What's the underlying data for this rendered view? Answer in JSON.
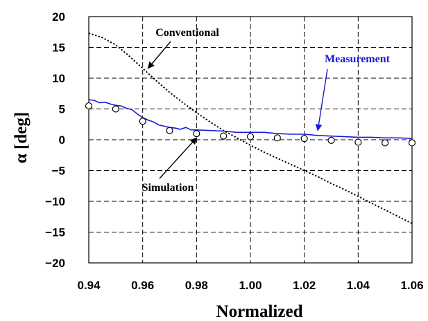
{
  "chart_data": {
    "type": "line",
    "xlabel": "Normalized",
    "ylabel": "α [deg]",
    "xlim": [
      0.94,
      1.06
    ],
    "ylim": [
      -20,
      20
    ],
    "x_ticks": [
      "0.94",
      "0.96",
      "0.98",
      "1.00",
      "1.02",
      "1.04",
      "1.06"
    ],
    "y_ticks": [
      "20",
      "15",
      "10",
      "5",
      "0",
      "−5",
      "−10",
      "−15",
      "−20"
    ],
    "x_tick_values": [
      0.94,
      0.96,
      0.98,
      1.0,
      1.02,
      1.04,
      1.06
    ],
    "y_tick_values": [
      20,
      15,
      10,
      5,
      0,
      -5,
      -10,
      -15,
      -20
    ],
    "grid": true,
    "series": [
      {
        "name": "Conventional",
        "style": "dotted",
        "color": "#000000",
        "x": [
          0.94,
          0.945,
          0.95,
          0.955,
          0.96,
          0.965,
          0.97,
          0.975,
          0.98,
          0.985,
          0.99,
          0.995,
          1.0,
          1.005,
          1.01,
          1.015,
          1.02,
          1.025,
          1.03,
          1.035,
          1.04,
          1.045,
          1.05,
          1.055,
          1.06
        ],
        "y": [
          17.3,
          16.6,
          15.4,
          13.6,
          11.6,
          9.6,
          7.7,
          6.0,
          4.4,
          2.9,
          1.5,
          0.3,
          -0.9,
          -2.0,
          -3.0,
          -4.0,
          -5.0,
          -6.0,
          -7.1,
          -8.1,
          -9.2,
          -10.3,
          -11.4,
          -12.5,
          -13.6
        ]
      },
      {
        "name": "Measurement",
        "style": "solid",
        "color": "#1a1ad6",
        "x": [
          0.94,
          0.942,
          0.944,
          0.946,
          0.948,
          0.95,
          0.952,
          0.954,
          0.956,
          0.958,
          0.96,
          0.962,
          0.964,
          0.966,
          0.968,
          0.97,
          0.972,
          0.974,
          0.976,
          0.978,
          0.98,
          0.985,
          0.99,
          0.995,
          1.0,
          1.005,
          1.01,
          1.015,
          1.02,
          1.025,
          1.03,
          1.035,
          1.04,
          1.045,
          1.05,
          1.055,
          1.06
        ],
        "y": [
          6.5,
          6.4,
          6.0,
          6.1,
          5.8,
          5.6,
          5.5,
          5.1,
          4.9,
          4.2,
          3.6,
          3.2,
          2.9,
          2.4,
          2.2,
          2.0,
          1.9,
          1.7,
          2.0,
          1.6,
          1.6,
          1.5,
          1.4,
          1.2,
          1.2,
          1.2,
          1.0,
          0.9,
          0.9,
          0.7,
          0.6,
          0.5,
          0.4,
          0.4,
          0.3,
          0.3,
          0.2
        ]
      },
      {
        "name": "Simulation",
        "style": "markers",
        "color": "#000000",
        "x": [
          0.94,
          0.95,
          0.96,
          0.97,
          0.98,
          0.99,
          1.0,
          1.01,
          1.02,
          1.03,
          1.04,
          1.05,
          1.06
        ],
        "y": [
          5.5,
          5.0,
          3.0,
          1.5,
          1.0,
          0.6,
          0.5,
          0.3,
          0.2,
          -0.1,
          -0.4,
          -0.5,
          -0.5
        ]
      }
    ],
    "annotations": [
      {
        "label": "Conventional",
        "target": [
          0.962,
          11.6
        ]
      },
      {
        "label": "Measurement",
        "target": [
          1.025,
          1.5
        ]
      },
      {
        "label": "Simulation",
        "target": [
          0.98,
          0.3
        ]
      }
    ]
  }
}
